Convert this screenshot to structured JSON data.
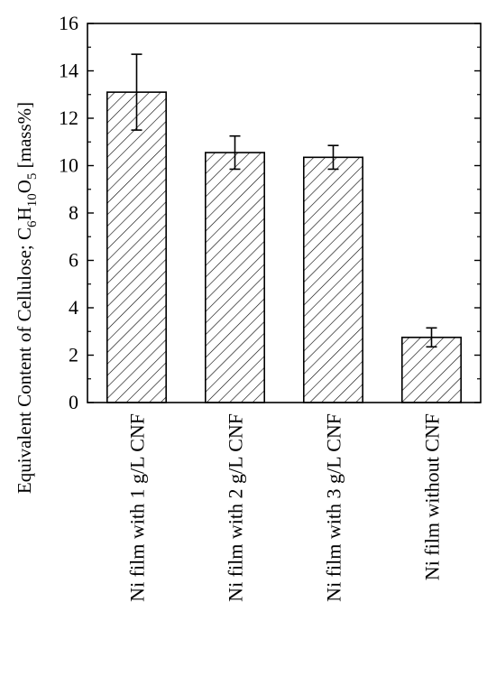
{
  "chart_data": {
    "type": "bar",
    "title": "",
    "xlabel": "",
    "ylabel": {
      "parts": [
        {
          "text": "Equivalent Content of Cellulose; C"
        },
        {
          "text": "6",
          "sub": true
        },
        {
          "text": "H"
        },
        {
          "text": "10",
          "sub": true
        },
        {
          "text": "O"
        },
        {
          "text": "5",
          "sub": true
        },
        {
          "text": " [mass%]"
        }
      ]
    },
    "ylim": [
      0,
      16
    ],
    "yticks": [
      0,
      2,
      4,
      6,
      8,
      10,
      12,
      14,
      16
    ],
    "grid": false,
    "legend": "none",
    "bar_fill": "diagonal-hatch",
    "colors": {
      "stroke": "#000000",
      "background": "#ffffff"
    },
    "categories": [
      "Ni film with 1 g/L CNF",
      "Ni film with 2 g/L CNF",
      "Ni film with 3 g/L CNF",
      "Ni film without CNF"
    ],
    "values": [
      13.1,
      10.55,
      10.35,
      2.75
    ],
    "error": [
      1.6,
      0.7,
      0.5,
      0.4
    ]
  }
}
